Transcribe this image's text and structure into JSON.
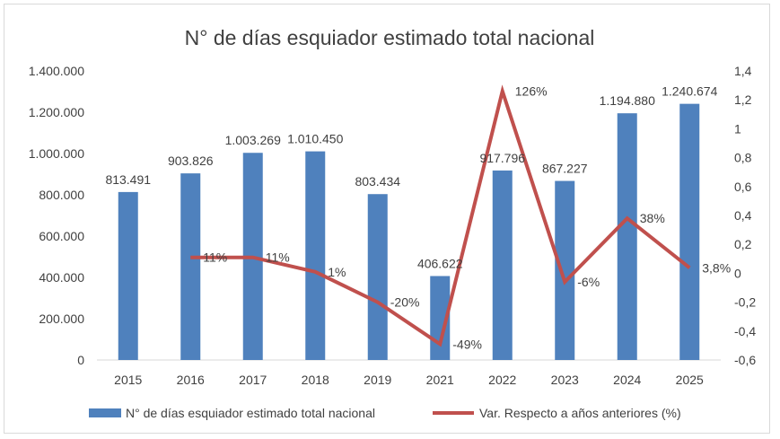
{
  "chart_data": {
    "type": "bar+line",
    "title": "N° de días esquiador estimado total nacional",
    "categories": [
      "2015",
      "2016",
      "2017",
      "2018",
      "2019",
      "2021",
      "2022",
      "2023",
      "2024",
      "2025"
    ],
    "series": [
      {
        "name": "N° de días esquiador estimado total nacional",
        "type": "bar",
        "axis": "left",
        "color": "#4f81bd",
        "values": [
          813491,
          903826,
          1003269,
          1010450,
          803434,
          406622,
          917796,
          867227,
          1194880,
          1240674
        ],
        "labels": [
          "813.491",
          "903.826",
          "1.003.269",
          "1.010.450",
          "803.434",
          "406.622",
          "917.796",
          "867.227",
          "1.194.880",
          "1.240.674"
        ]
      },
      {
        "name": "Var. Respecto a años anteriores (%)",
        "type": "line",
        "axis": "right",
        "color": "#c0504d",
        "values": [
          null,
          0.11,
          0.11,
          0.01,
          -0.2,
          -0.49,
          1.26,
          -0.06,
          0.38,
          0.038
        ],
        "labels": [
          "",
          "11%",
          "11%",
          "1%",
          "-20%",
          "-49%",
          "126%",
          "-6%",
          "38%",
          "3,8%"
        ]
      }
    ],
    "y_left": {
      "range": [
        0,
        1400000
      ],
      "ticks": [
        "0",
        "200.000",
        "400.000",
        "600.000",
        "800.000",
        "1.000.000",
        "1.200.000",
        "1.400.000"
      ]
    },
    "y_right": {
      "range": [
        -0.6,
        1.4
      ],
      "ticks": [
        "-0,6",
        "-0,4",
        "-0,2",
        "0",
        "0,2",
        "0,4",
        "0,6",
        "0,8",
        "1",
        "1,2",
        "1,4"
      ]
    },
    "grid": false,
    "legend": "bottom"
  }
}
